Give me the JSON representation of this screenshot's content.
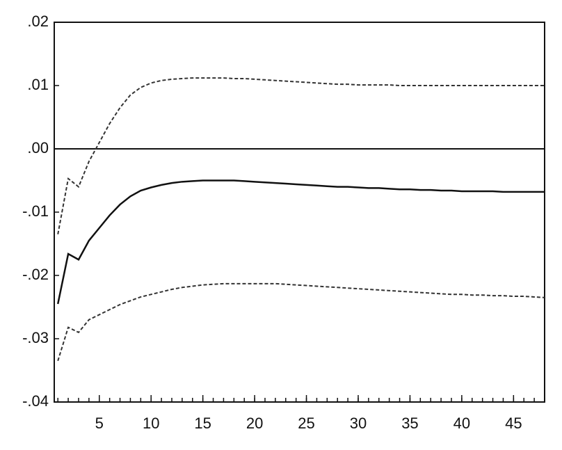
{
  "chart_data": {
    "type": "line",
    "x": [
      1,
      2,
      3,
      4,
      5,
      6,
      7,
      8,
      9,
      10,
      11,
      12,
      13,
      14,
      15,
      16,
      17,
      18,
      19,
      20,
      21,
      22,
      23,
      24,
      25,
      26,
      27,
      28,
      29,
      30,
      31,
      32,
      33,
      34,
      35,
      36,
      37,
      38,
      39,
      40,
      41,
      42,
      43,
      44,
      45,
      46,
      47,
      48
    ],
    "series": [
      {
        "color": "#111111",
        "dash": "solid",
        "values": [
          -0.0245,
          -0.0166,
          -0.0175,
          -0.0145,
          -0.0125,
          -0.0105,
          -0.0088,
          -0.0075,
          -0.0066,
          -0.0061,
          -0.0057,
          -0.0054,
          -0.0052,
          -0.0051,
          -0.005,
          -0.005,
          -0.005,
          -0.005,
          -0.0051,
          -0.0052,
          -0.0053,
          -0.0054,
          -0.0055,
          -0.0056,
          -0.0057,
          -0.0058,
          -0.0059,
          -0.006,
          -0.006,
          -0.0061,
          -0.0062,
          -0.0062,
          -0.0063,
          -0.0064,
          -0.0064,
          -0.0065,
          -0.0065,
          -0.0066,
          -0.0066,
          -0.0067,
          -0.0067,
          -0.0067,
          -0.0067,
          -0.0068,
          -0.0068,
          -0.0068,
          -0.0068,
          -0.0068
        ]
      },
      {
        "color": "#333333",
        "dash": "dashed",
        "values": [
          -0.0135,
          -0.0047,
          -0.006,
          -0.002,
          0.001,
          0.004,
          0.0065,
          0.0085,
          0.0097,
          0.0104,
          0.0108,
          0.011,
          0.0111,
          0.0112,
          0.0112,
          0.0112,
          0.0112,
          0.0111,
          0.0111,
          0.011,
          0.0109,
          0.0108,
          0.0107,
          0.0106,
          0.0105,
          0.0104,
          0.0103,
          0.0102,
          0.0102,
          0.0101,
          0.0101,
          0.0101,
          0.0101,
          0.01,
          0.01,
          0.01,
          0.01,
          0.01,
          0.01,
          0.01,
          0.01,
          0.01,
          0.01,
          0.01,
          0.01,
          0.01,
          0.01,
          0.01
        ]
      },
      {
        "color": "#333333",
        "dash": "dashed",
        "values": [
          -0.0335,
          -0.0282,
          -0.029,
          -0.027,
          -0.0262,
          -0.0254,
          -0.0246,
          -0.024,
          -0.0234,
          -0.023,
          -0.0226,
          -0.0222,
          -0.0219,
          -0.0217,
          -0.0215,
          -0.0214,
          -0.0213,
          -0.0213,
          -0.0213,
          -0.0213,
          -0.0213,
          -0.0213,
          -0.0214,
          -0.0215,
          -0.0216,
          -0.0217,
          -0.0218,
          -0.0219,
          -0.022,
          -0.0221,
          -0.0222,
          -0.0223,
          -0.0224,
          -0.0225,
          -0.0226,
          -0.0227,
          -0.0228,
          -0.0229,
          -0.023,
          -0.023,
          -0.0231,
          -0.0231,
          -0.0232,
          -0.0232,
          -0.0233,
          -0.0233,
          -0.0234,
          -0.0235
        ]
      }
    ],
    "xlim": [
      0.65,
      48
    ],
    "xticks": [
      5,
      10,
      15,
      20,
      25,
      30,
      35,
      40,
      45
    ],
    "ylim": [
      -0.04,
      0.02
    ],
    "yticks": [
      {
        "value": -0.04,
        "label": "-.04"
      },
      {
        "value": -0.03,
        "label": "-.03"
      },
      {
        "value": -0.02,
        "label": "-.02"
      },
      {
        "value": -0.01,
        "label": "-.01"
      },
      {
        "value": 0,
        "label": ".00"
      },
      {
        "value": 0.01,
        "label": ".01"
      },
      {
        "value": 0.02,
        "label": ".02"
      }
    ],
    "zero_line": true
  }
}
